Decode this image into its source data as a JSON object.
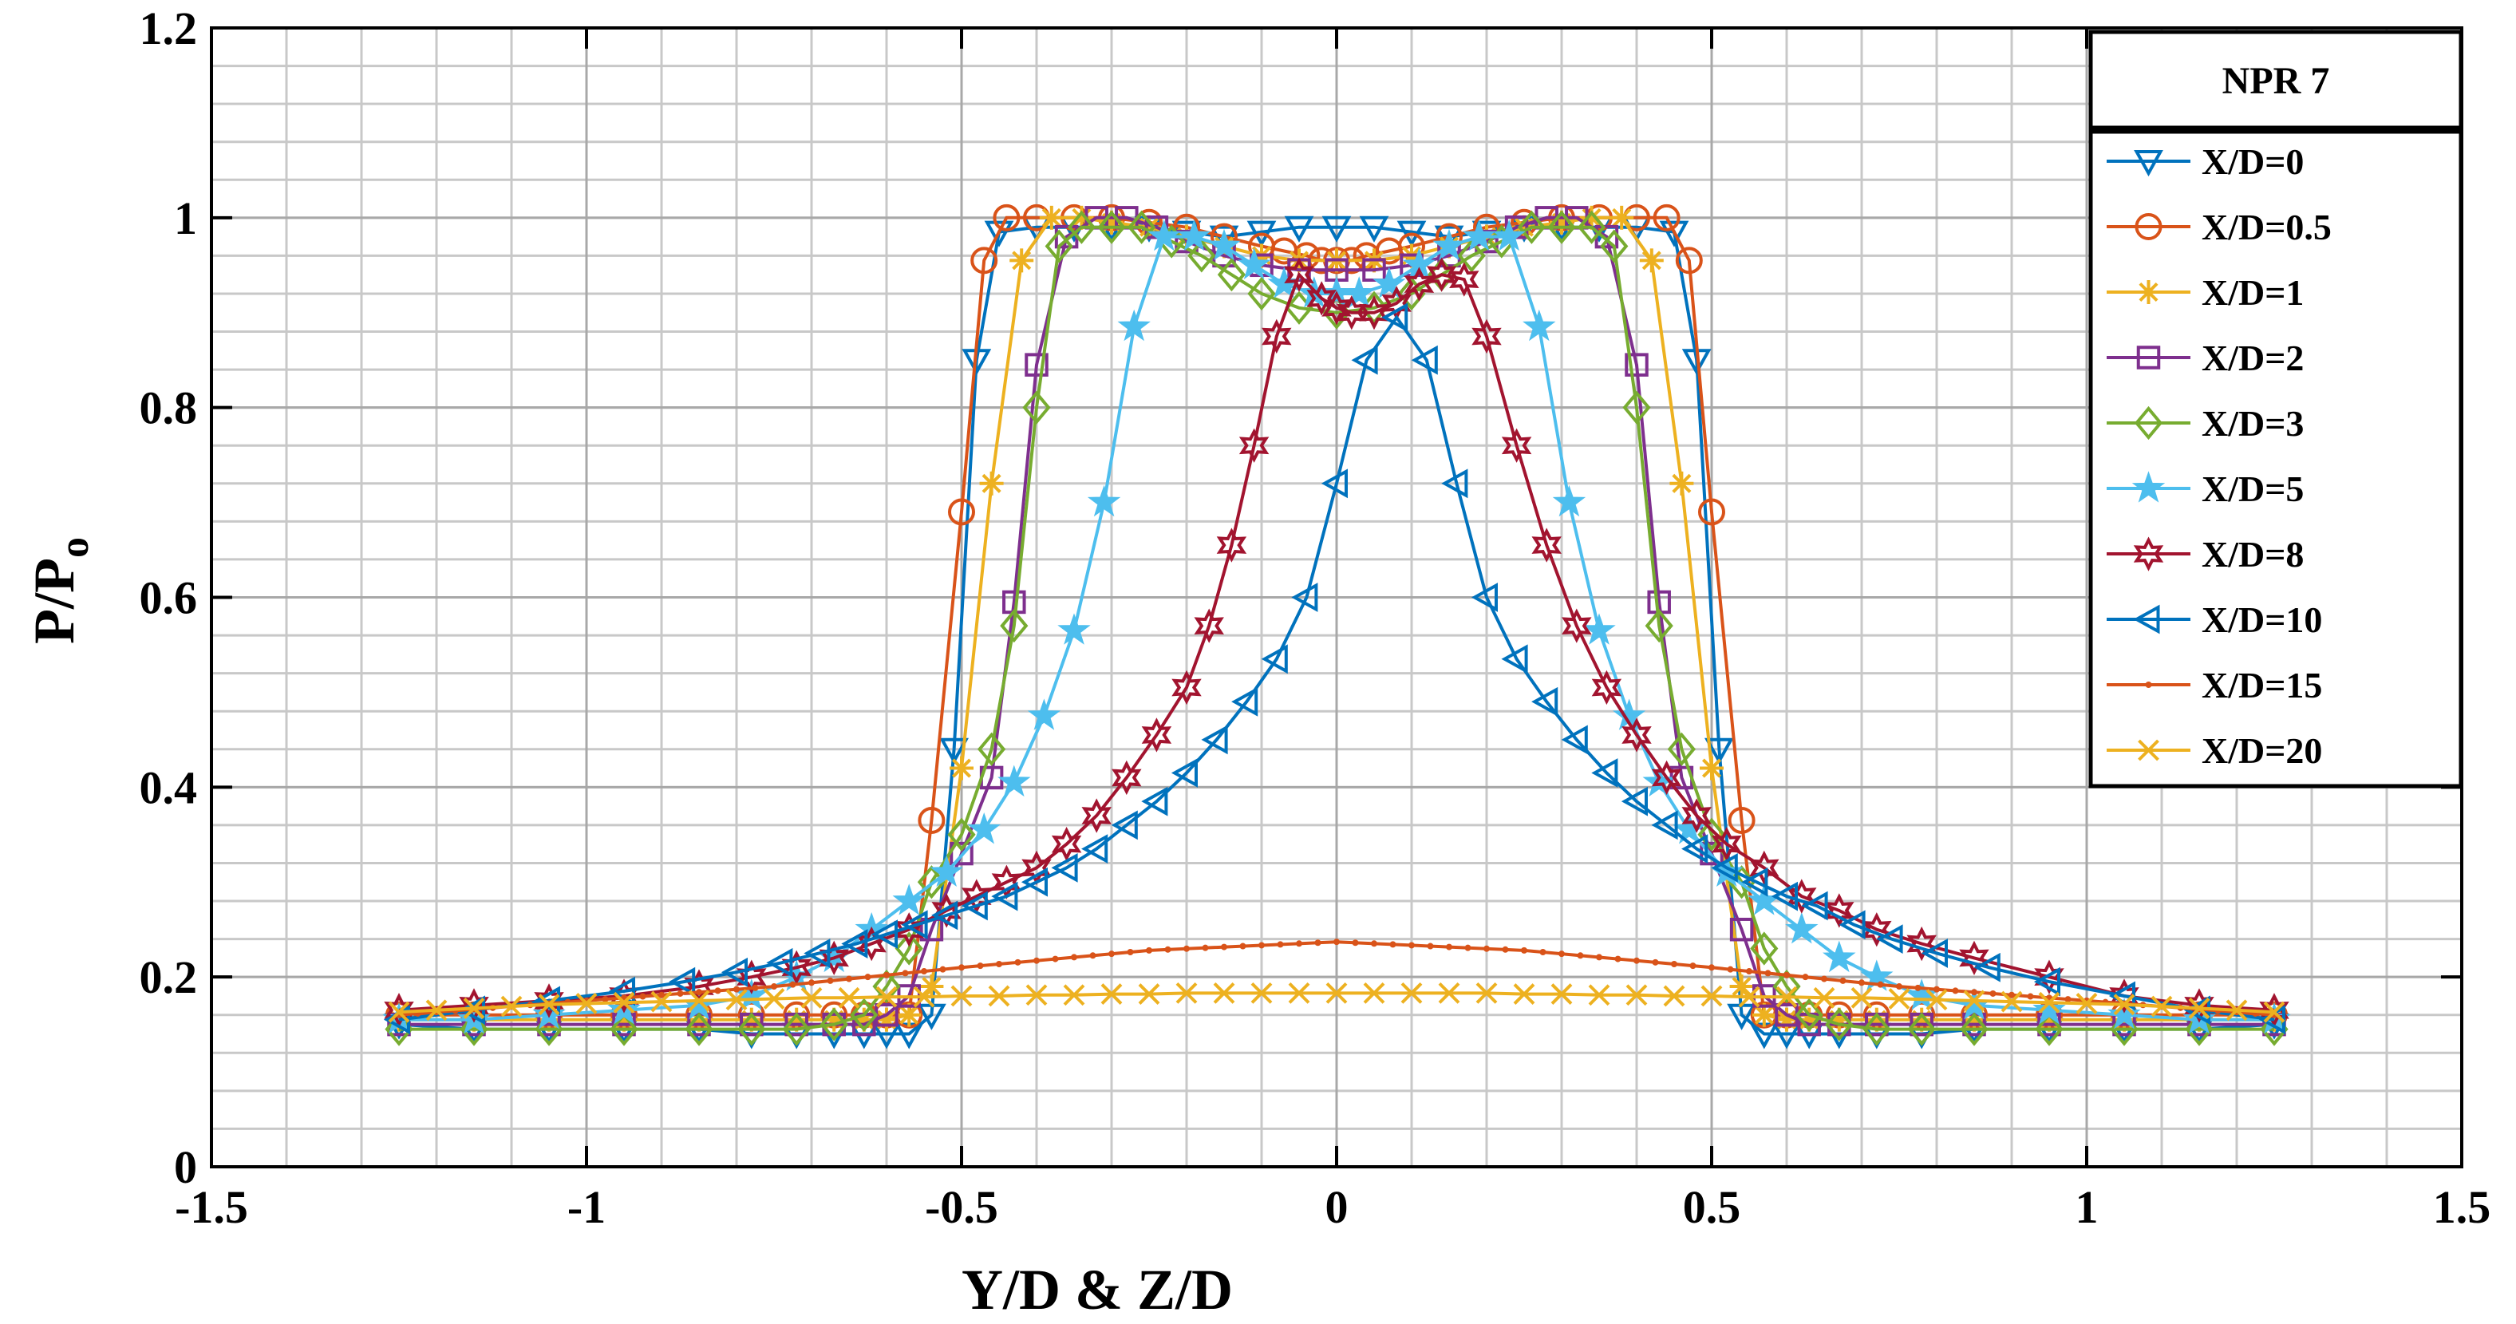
{
  "chart_data": {
    "type": "line",
    "title": "",
    "xlabel": "Y/D & Z/D",
    "ylabel_main": "P/P",
    "ylabel_sub": "o",
    "xlim": [
      -1.5,
      1.5
    ],
    "ylim": [
      0,
      1.2
    ],
    "xticks": [
      -1.5,
      -1,
      -0.5,
      0,
      0.5,
      1,
      1.5
    ],
    "xtick_labels": [
      "-1.5",
      "-1",
      "-0.5",
      "0",
      "0.5",
      "1",
      "1.5"
    ],
    "yticks": [
      0,
      0.2,
      0.4,
      0.6,
      0.8,
      1,
      1.2
    ],
    "ytick_labels": [
      "0",
      "0.2",
      "0.4",
      "0.6",
      "0.8",
      "1",
      "1.2"
    ],
    "grid": true,
    "minor_grid": true,
    "legend_title": "NPR 7",
    "legend_position": "top-right",
    "series": [
      {
        "name": "X/D=0",
        "color": "#0072BD",
        "marker": "triangle-down",
        "x": [
          -1.25,
          -1.15,
          -1.05,
          -0.95,
          -0.85,
          -0.78,
          -0.72,
          -0.67,
          -0.63,
          -0.6,
          -0.57,
          -0.54,
          -0.51,
          -0.48,
          -0.45,
          -0.4,
          -0.35,
          -0.3,
          -0.25,
          -0.2,
          -0.15,
          -0.1,
          -0.05,
          0,
          0.05,
          0.1,
          0.15,
          0.2,
          0.25,
          0.3,
          0.35,
          0.4,
          0.45,
          0.48,
          0.51,
          0.54,
          0.57,
          0.6,
          0.63,
          0.67,
          0.72,
          0.78,
          0.85,
          0.95,
          1.05,
          1.15,
          1.25
        ],
        "y": [
          0.15,
          0.145,
          0.145,
          0.145,
          0.145,
          0.14,
          0.14,
          0.14,
          0.14,
          0.14,
          0.14,
          0.16,
          0.44,
          0.85,
          0.985,
          0.99,
          0.99,
          0.99,
          0.99,
          0.985,
          0.98,
          0.985,
          0.99,
          0.99,
          0.99,
          0.985,
          0.98,
          0.985,
          0.99,
          0.99,
          0.99,
          0.99,
          0.985,
          0.85,
          0.44,
          0.16,
          0.14,
          0.14,
          0.14,
          0.14,
          0.14,
          0.14,
          0.145,
          0.145,
          0.145,
          0.145,
          0.15
        ]
      },
      {
        "name": "X/D=0.5",
        "color": "#D95319",
        "marker": "circle",
        "x": [
          -1.25,
          -1.15,
          -1.05,
          -0.95,
          -0.85,
          -0.78,
          -0.72,
          -0.67,
          -0.63,
          -0.6,
          -0.57,
          -0.54,
          -0.5,
          -0.47,
          -0.44,
          -0.4,
          -0.35,
          -0.3,
          -0.25,
          -0.2,
          -0.15,
          -0.1,
          -0.07,
          -0.04,
          -0.02,
          0,
          0.02,
          0.04,
          0.07,
          0.1,
          0.15,
          0.2,
          0.25,
          0.3,
          0.35,
          0.4,
          0.44,
          0.47,
          0.5,
          0.54,
          0.57,
          0.6,
          0.63,
          0.67,
          0.72,
          0.78,
          0.85,
          0.95,
          1.05,
          1.15,
          1.25
        ],
        "y": [
          0.16,
          0.16,
          0.16,
          0.16,
          0.16,
          0.16,
          0.16,
          0.16,
          0.16,
          0.16,
          0.16,
          0.365,
          0.69,
          0.955,
          1.0,
          1.0,
          1.0,
          1.0,
          0.995,
          0.99,
          0.98,
          0.97,
          0.965,
          0.96,
          0.955,
          0.955,
          0.955,
          0.96,
          0.965,
          0.97,
          0.98,
          0.99,
          0.995,
          1.0,
          1.0,
          1.0,
          1.0,
          0.955,
          0.69,
          0.365,
          0.16,
          0.16,
          0.16,
          0.16,
          0.16,
          0.16,
          0.16,
          0.16,
          0.16,
          0.16,
          0.16
        ]
      },
      {
        "name": "X/D=1",
        "color": "#EDB120",
        "marker": "asterisk",
        "x": [
          -1.25,
          -1.15,
          -1.05,
          -0.95,
          -0.85,
          -0.78,
          -0.72,
          -0.67,
          -0.63,
          -0.6,
          -0.57,
          -0.54,
          -0.5,
          -0.46,
          -0.42,
          -0.38,
          -0.34,
          -0.3,
          -0.25,
          -0.2,
          -0.15,
          -0.1,
          -0.05,
          0,
          0.05,
          0.1,
          0.15,
          0.2,
          0.25,
          0.3,
          0.34,
          0.38,
          0.42,
          0.46,
          0.5,
          0.54,
          0.57,
          0.6,
          0.63,
          0.67,
          0.72,
          0.78,
          0.85,
          0.95,
          1.05,
          1.15,
          1.25
        ],
        "y": [
          0.155,
          0.155,
          0.155,
          0.155,
          0.155,
          0.155,
          0.155,
          0.155,
          0.155,
          0.155,
          0.16,
          0.19,
          0.42,
          0.72,
          0.955,
          1.0,
          1.0,
          0.995,
          0.99,
          0.98,
          0.97,
          0.96,
          0.955,
          0.955,
          0.955,
          0.96,
          0.97,
          0.98,
          0.99,
          0.995,
          1.0,
          1.0,
          0.955,
          0.72,
          0.42,
          0.19,
          0.16,
          0.155,
          0.155,
          0.155,
          0.155,
          0.155,
          0.155,
          0.155,
          0.155,
          0.155,
          0.155
        ]
      },
      {
        "name": "X/D=2",
        "color": "#7E2F8E",
        "marker": "square",
        "x": [
          -1.25,
          -1.15,
          -1.05,
          -0.95,
          -0.85,
          -0.78,
          -0.72,
          -0.67,
          -0.63,
          -0.6,
          -0.57,
          -0.54,
          -0.5,
          -0.46,
          -0.43,
          -0.4,
          -0.36,
          -0.32,
          -0.28,
          -0.24,
          -0.2,
          -0.15,
          -0.1,
          -0.05,
          0,
          0.05,
          0.1,
          0.15,
          0.2,
          0.24,
          0.28,
          0.32,
          0.36,
          0.4,
          0.43,
          0.46,
          0.5,
          0.54,
          0.57,
          0.6,
          0.63,
          0.67,
          0.72,
          0.78,
          0.85,
          0.95,
          1.05,
          1.15,
          1.25
        ],
        "y": [
          0.15,
          0.15,
          0.15,
          0.15,
          0.15,
          0.15,
          0.15,
          0.15,
          0.15,
          0.16,
          0.18,
          0.25,
          0.33,
          0.41,
          0.595,
          0.845,
          0.98,
          1.0,
          1.0,
          0.99,
          0.975,
          0.96,
          0.95,
          0.945,
          0.945,
          0.945,
          0.95,
          0.96,
          0.975,
          0.99,
          1.0,
          1.0,
          0.98,
          0.845,
          0.595,
          0.41,
          0.33,
          0.25,
          0.18,
          0.16,
          0.15,
          0.15,
          0.15,
          0.15,
          0.15,
          0.15,
          0.15,
          0.15,
          0.15
        ]
      },
      {
        "name": "X/D=3",
        "color": "#77AC30",
        "marker": "diamond",
        "x": [
          -1.25,
          -1.15,
          -1.05,
          -0.95,
          -0.85,
          -0.78,
          -0.72,
          -0.67,
          -0.63,
          -0.6,
          -0.57,
          -0.54,
          -0.5,
          -0.46,
          -0.43,
          -0.4,
          -0.37,
          -0.34,
          -0.3,
          -0.26,
          -0.22,
          -0.18,
          -0.14,
          -0.1,
          -0.05,
          0,
          0.05,
          0.1,
          0.14,
          0.18,
          0.22,
          0.26,
          0.3,
          0.34,
          0.37,
          0.4,
          0.43,
          0.46,
          0.5,
          0.54,
          0.57,
          0.6,
          0.63,
          0.67,
          0.72,
          0.78,
          0.85,
          0.95,
          1.05,
          1.15,
          1.25
        ],
        "y": [
          0.145,
          0.145,
          0.145,
          0.145,
          0.145,
          0.145,
          0.145,
          0.15,
          0.16,
          0.19,
          0.23,
          0.3,
          0.35,
          0.44,
          0.57,
          0.8,
          0.97,
          0.99,
          0.99,
          0.99,
          0.975,
          0.96,
          0.94,
          0.92,
          0.905,
          0.9,
          0.905,
          0.92,
          0.94,
          0.96,
          0.975,
          0.99,
          0.99,
          0.99,
          0.97,
          0.8,
          0.57,
          0.44,
          0.35,
          0.3,
          0.23,
          0.19,
          0.16,
          0.15,
          0.145,
          0.145,
          0.145,
          0.145,
          0.145,
          0.145,
          0.145
        ]
      },
      {
        "name": "X/D=5",
        "color": "#4DBEEE",
        "marker": "star",
        "x": [
          -1.25,
          -1.15,
          -1.05,
          -0.95,
          -0.85,
          -0.78,
          -0.72,
          -0.67,
          -0.62,
          -0.57,
          -0.52,
          -0.47,
          -0.43,
          -0.39,
          -0.35,
          -0.31,
          -0.27,
          -0.23,
          -0.19,
          -0.15,
          -0.11,
          -0.07,
          -0.03,
          0,
          0.03,
          0.07,
          0.11,
          0.15,
          0.19,
          0.23,
          0.27,
          0.31,
          0.35,
          0.39,
          0.43,
          0.47,
          0.52,
          0.57,
          0.62,
          0.67,
          0.72,
          0.78,
          0.85,
          0.95,
          1.05,
          1.15,
          1.25
        ],
        "y": [
          0.155,
          0.155,
          0.16,
          0.165,
          0.17,
          0.18,
          0.2,
          0.22,
          0.25,
          0.28,
          0.31,
          0.355,
          0.405,
          0.475,
          0.565,
          0.7,
          0.885,
          0.98,
          0.98,
          0.97,
          0.95,
          0.93,
          0.92,
          0.92,
          0.92,
          0.93,
          0.95,
          0.97,
          0.98,
          0.98,
          0.885,
          0.7,
          0.565,
          0.475,
          0.405,
          0.355,
          0.31,
          0.28,
          0.25,
          0.22,
          0.2,
          0.18,
          0.17,
          0.165,
          0.16,
          0.155,
          0.155
        ]
      },
      {
        "name": "X/D=8",
        "color": "#A2142F",
        "marker": "hexagram",
        "x": [
          -1.25,
          -1.15,
          -1.05,
          -0.95,
          -0.85,
          -0.78,
          -0.72,
          -0.67,
          -0.62,
          -0.57,
          -0.52,
          -0.48,
          -0.44,
          -0.4,
          -0.36,
          -0.32,
          -0.28,
          -0.24,
          -0.2,
          -0.17,
          -0.14,
          -0.11,
          -0.08,
          -0.05,
          -0.02,
          0,
          0.02,
          0.05,
          0.08,
          0.11,
          0.14,
          0.17,
          0.2,
          0.24,
          0.28,
          0.32,
          0.36,
          0.4,
          0.44,
          0.48,
          0.52,
          0.57,
          0.62,
          0.67,
          0.72,
          0.78,
          0.85,
          0.95,
          1.05,
          1.15,
          1.25
        ],
        "y": [
          0.165,
          0.17,
          0.175,
          0.18,
          0.19,
          0.2,
          0.21,
          0.22,
          0.235,
          0.25,
          0.27,
          0.285,
          0.3,
          0.315,
          0.34,
          0.37,
          0.41,
          0.455,
          0.505,
          0.57,
          0.655,
          0.76,
          0.875,
          0.94,
          0.915,
          0.905,
          0.9,
          0.9,
          0.91,
          0.93,
          0.94,
          0.935,
          0.875,
          0.76,
          0.655,
          0.57,
          0.505,
          0.455,
          0.41,
          0.37,
          0.34,
          0.315,
          0.285,
          0.27,
          0.25,
          0.235,
          0.22,
          0.2,
          0.18,
          0.17,
          0.165
        ]
      },
      {
        "name": "X/D=10",
        "color": "#0072BD",
        "marker": "triangle-left",
        "x": [
          -1.25,
          -1.15,
          -1.05,
          -0.95,
          -0.87,
          -0.8,
          -0.74,
          -0.69,
          -0.64,
          -0.6,
          -0.56,
          -0.52,
          -0.48,
          -0.44,
          -0.4,
          -0.36,
          -0.32,
          -0.28,
          -0.24,
          -0.2,
          -0.16,
          -0.12,
          -0.08,
          -0.04,
          0,
          0.04,
          0.08,
          0.12,
          0.16,
          0.2,
          0.24,
          0.28,
          0.32,
          0.36,
          0.4,
          0.44,
          0.48,
          0.52,
          0.56,
          0.6,
          0.64,
          0.69,
          0.74,
          0.8,
          0.87,
          0.95,
          1.05,
          1.15,
          1.25
        ],
        "y": [
          0.155,
          0.165,
          0.175,
          0.185,
          0.195,
          0.205,
          0.215,
          0.225,
          0.235,
          0.245,
          0.255,
          0.265,
          0.275,
          0.285,
          0.3,
          0.315,
          0.335,
          0.36,
          0.385,
          0.415,
          0.45,
          0.49,
          0.535,
          0.6,
          0.72,
          0.85,
          0.895,
          0.85,
          0.72,
          0.6,
          0.535,
          0.49,
          0.45,
          0.415,
          0.385,
          0.36,
          0.335,
          0.315,
          0.3,
          0.285,
          0.275,
          0.255,
          0.24,
          0.225,
          0.21,
          0.195,
          0.18,
          0.165,
          0.155
        ]
      },
      {
        "name": "X/D=15",
        "color": "#D95319",
        "marker": "point",
        "x": [
          -1.25,
          -1.0,
          -0.75,
          -0.5,
          -0.25,
          0,
          0.25,
          0.5,
          0.75,
          1.0,
          1.25
        ],
        "y": [
          0.16,
          0.175,
          0.19,
          0.21,
          0.228,
          0.237,
          0.228,
          0.21,
          0.19,
          0.175,
          0.16
        ],
        "dense_markers": true
      },
      {
        "name": "X/D=20",
        "color": "#EDB120",
        "marker": "x",
        "x": [
          -1.25,
          -1.2,
          -1.15,
          -1.1,
          -1.05,
          -1.0,
          -0.95,
          -0.9,
          -0.85,
          -0.8,
          -0.75,
          -0.7,
          -0.65,
          -0.6,
          -0.55,
          -0.5,
          -0.45,
          -0.4,
          -0.35,
          -0.3,
          -0.25,
          -0.2,
          -0.15,
          -0.1,
          -0.05,
          0,
          0.05,
          0.1,
          0.15,
          0.2,
          0.25,
          0.3,
          0.35,
          0.4,
          0.45,
          0.5,
          0.55,
          0.6,
          0.65,
          0.7,
          0.75,
          0.8,
          0.85,
          0.9,
          0.95,
          1.0,
          1.05,
          1.1,
          1.15,
          1.2,
          1.25
        ],
        "y": [
          0.163,
          0.165,
          0.167,
          0.169,
          0.171,
          0.172,
          0.173,
          0.174,
          0.175,
          0.176,
          0.177,
          0.178,
          0.178,
          0.179,
          0.179,
          0.18,
          0.18,
          0.181,
          0.181,
          0.182,
          0.182,
          0.183,
          0.183,
          0.183,
          0.183,
          0.183,
          0.183,
          0.183,
          0.183,
          0.183,
          0.182,
          0.182,
          0.181,
          0.181,
          0.18,
          0.18,
          0.179,
          0.179,
          0.178,
          0.178,
          0.177,
          0.176,
          0.175,
          0.174,
          0.173,
          0.172,
          0.171,
          0.169,
          0.167,
          0.165,
          0.163
        ]
      }
    ]
  }
}
